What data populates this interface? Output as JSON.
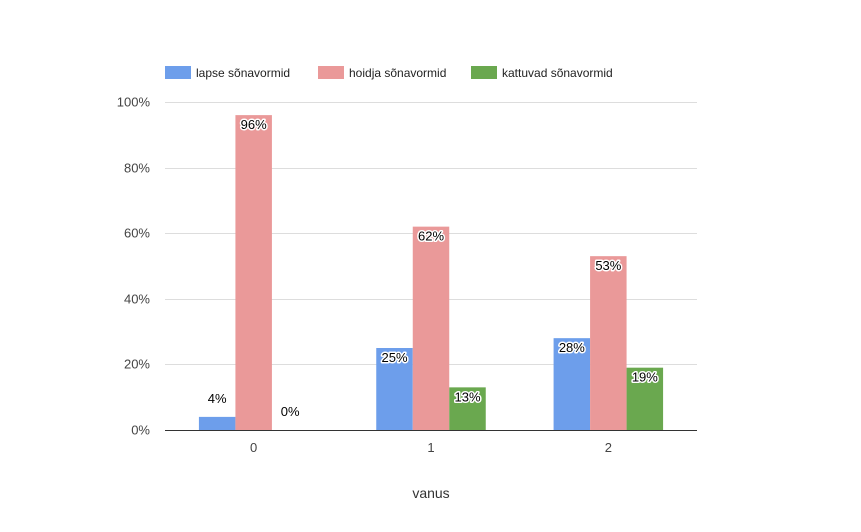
{
  "chart_data": {
    "type": "bar",
    "title": "",
    "xlabel": "vanus",
    "ylabel": "",
    "categories": [
      "0",
      "1",
      "2"
    ],
    "series": [
      {
        "name": "lapse sõnavormid",
        "color": "#6d9eeb",
        "values": [
          4,
          25,
          28
        ],
        "labels": [
          "4%",
          "25%",
          "28%"
        ]
      },
      {
        "name": "hoidja sõnavormid",
        "color": "#ea9999",
        "values": [
          96,
          62,
          53
        ],
        "labels": [
          "96%",
          "62%",
          "53%"
        ]
      },
      {
        "name": "kattuvad sõnavormid",
        "color": "#6aa84f",
        "values": [
          0,
          13,
          19
        ],
        "labels": [
          "0%",
          "13%",
          "19%"
        ]
      }
    ],
    "ylim": [
      0,
      100
    ],
    "yticks": [
      0,
      20,
      40,
      60,
      80,
      100
    ],
    "ytick_labels": [
      "0%",
      "20%",
      "40%",
      "60%",
      "80%",
      "100%"
    ],
    "grid": true,
    "legend": "top-left"
  }
}
